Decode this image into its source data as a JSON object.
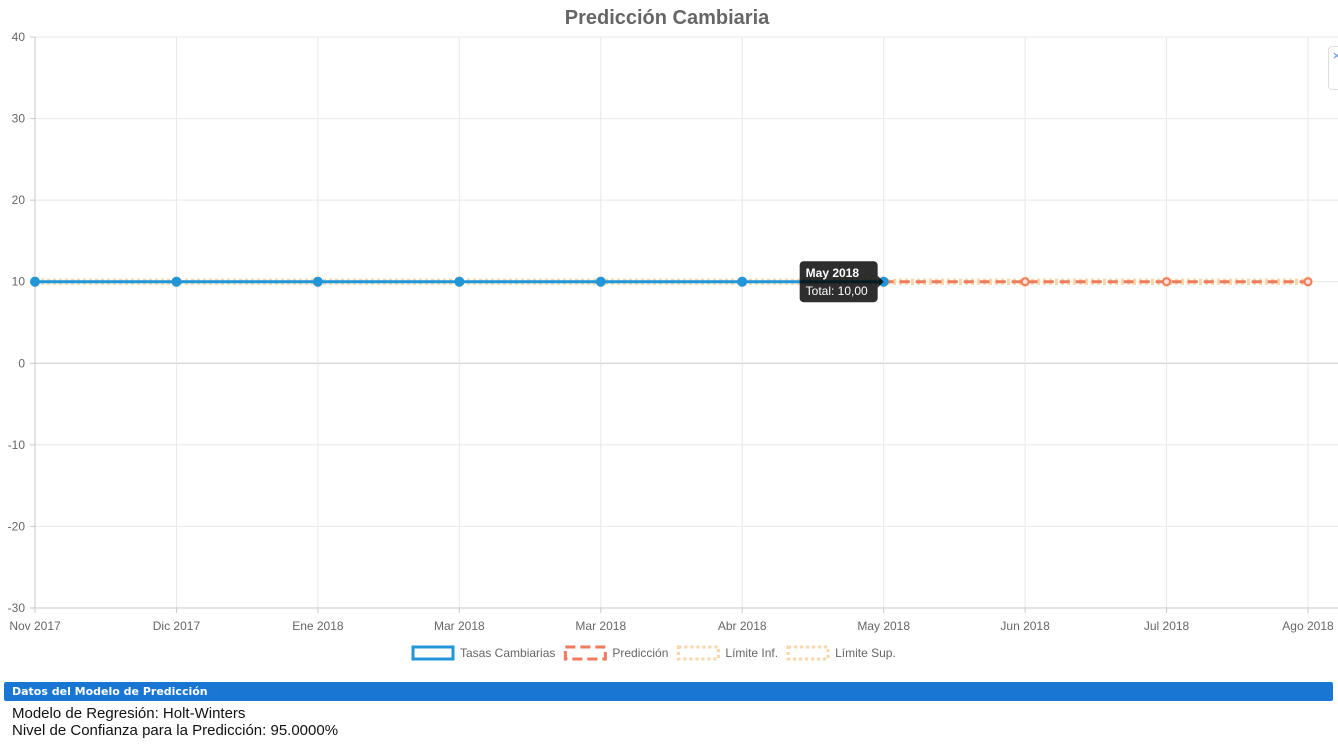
{
  "chart_data": {
    "type": "line",
    "title": "Predicción Cambiaria",
    "categories": [
      "Nov 2017",
      "Dic 2017",
      "Ene 2018",
      "Mar 2018",
      "Mar 2018",
      "Abr 2018",
      "May 2018",
      "Jun 2018",
      "Jul 2018",
      "Ago 2018"
    ],
    "ylim": [
      -30,
      40
    ],
    "yticks": [
      40,
      30,
      20,
      10,
      0,
      -10,
      -20,
      -30
    ],
    "grid": true,
    "legend_position": "bottom",
    "series": [
      {
        "name": "Tasas Cambiarias",
        "color": "#2196d9",
        "style": "solid",
        "values": [
          10,
          10,
          10,
          10,
          10,
          10,
          10,
          null,
          null,
          null
        ]
      },
      {
        "name": "Predicción",
        "color": "#f07b5c",
        "style": "dashed",
        "values": [
          null,
          null,
          null,
          null,
          null,
          null,
          10,
          10,
          10,
          10
        ]
      },
      {
        "name": "Límite Inf.",
        "color": "#f9d6a8",
        "style": "dotted",
        "values": [
          9.8,
          9.8,
          9.8,
          9.8,
          9.8,
          9.8,
          9.8,
          9.8,
          9.8,
          9.8
        ]
      },
      {
        "name": "Límite Sup.",
        "color": "#f9d6a8",
        "style": "dotted",
        "values": [
          10.2,
          10.2,
          10.2,
          10.2,
          10.2,
          10.2,
          10.2,
          10.2,
          10.2,
          10.2
        ]
      }
    ],
    "tooltip": {
      "category_index": 6,
      "title": "May 2018",
      "body": "Total: 10,00"
    }
  },
  "close_icon": "close-icon",
  "close_glyph": "×",
  "panel": {
    "header": "Datos del Modelo de Predicción",
    "lines": [
      "Modelo de Regresión: Holt-Winters",
      "Nivel de Confianza para la Predicción: 95.0000%"
    ]
  }
}
